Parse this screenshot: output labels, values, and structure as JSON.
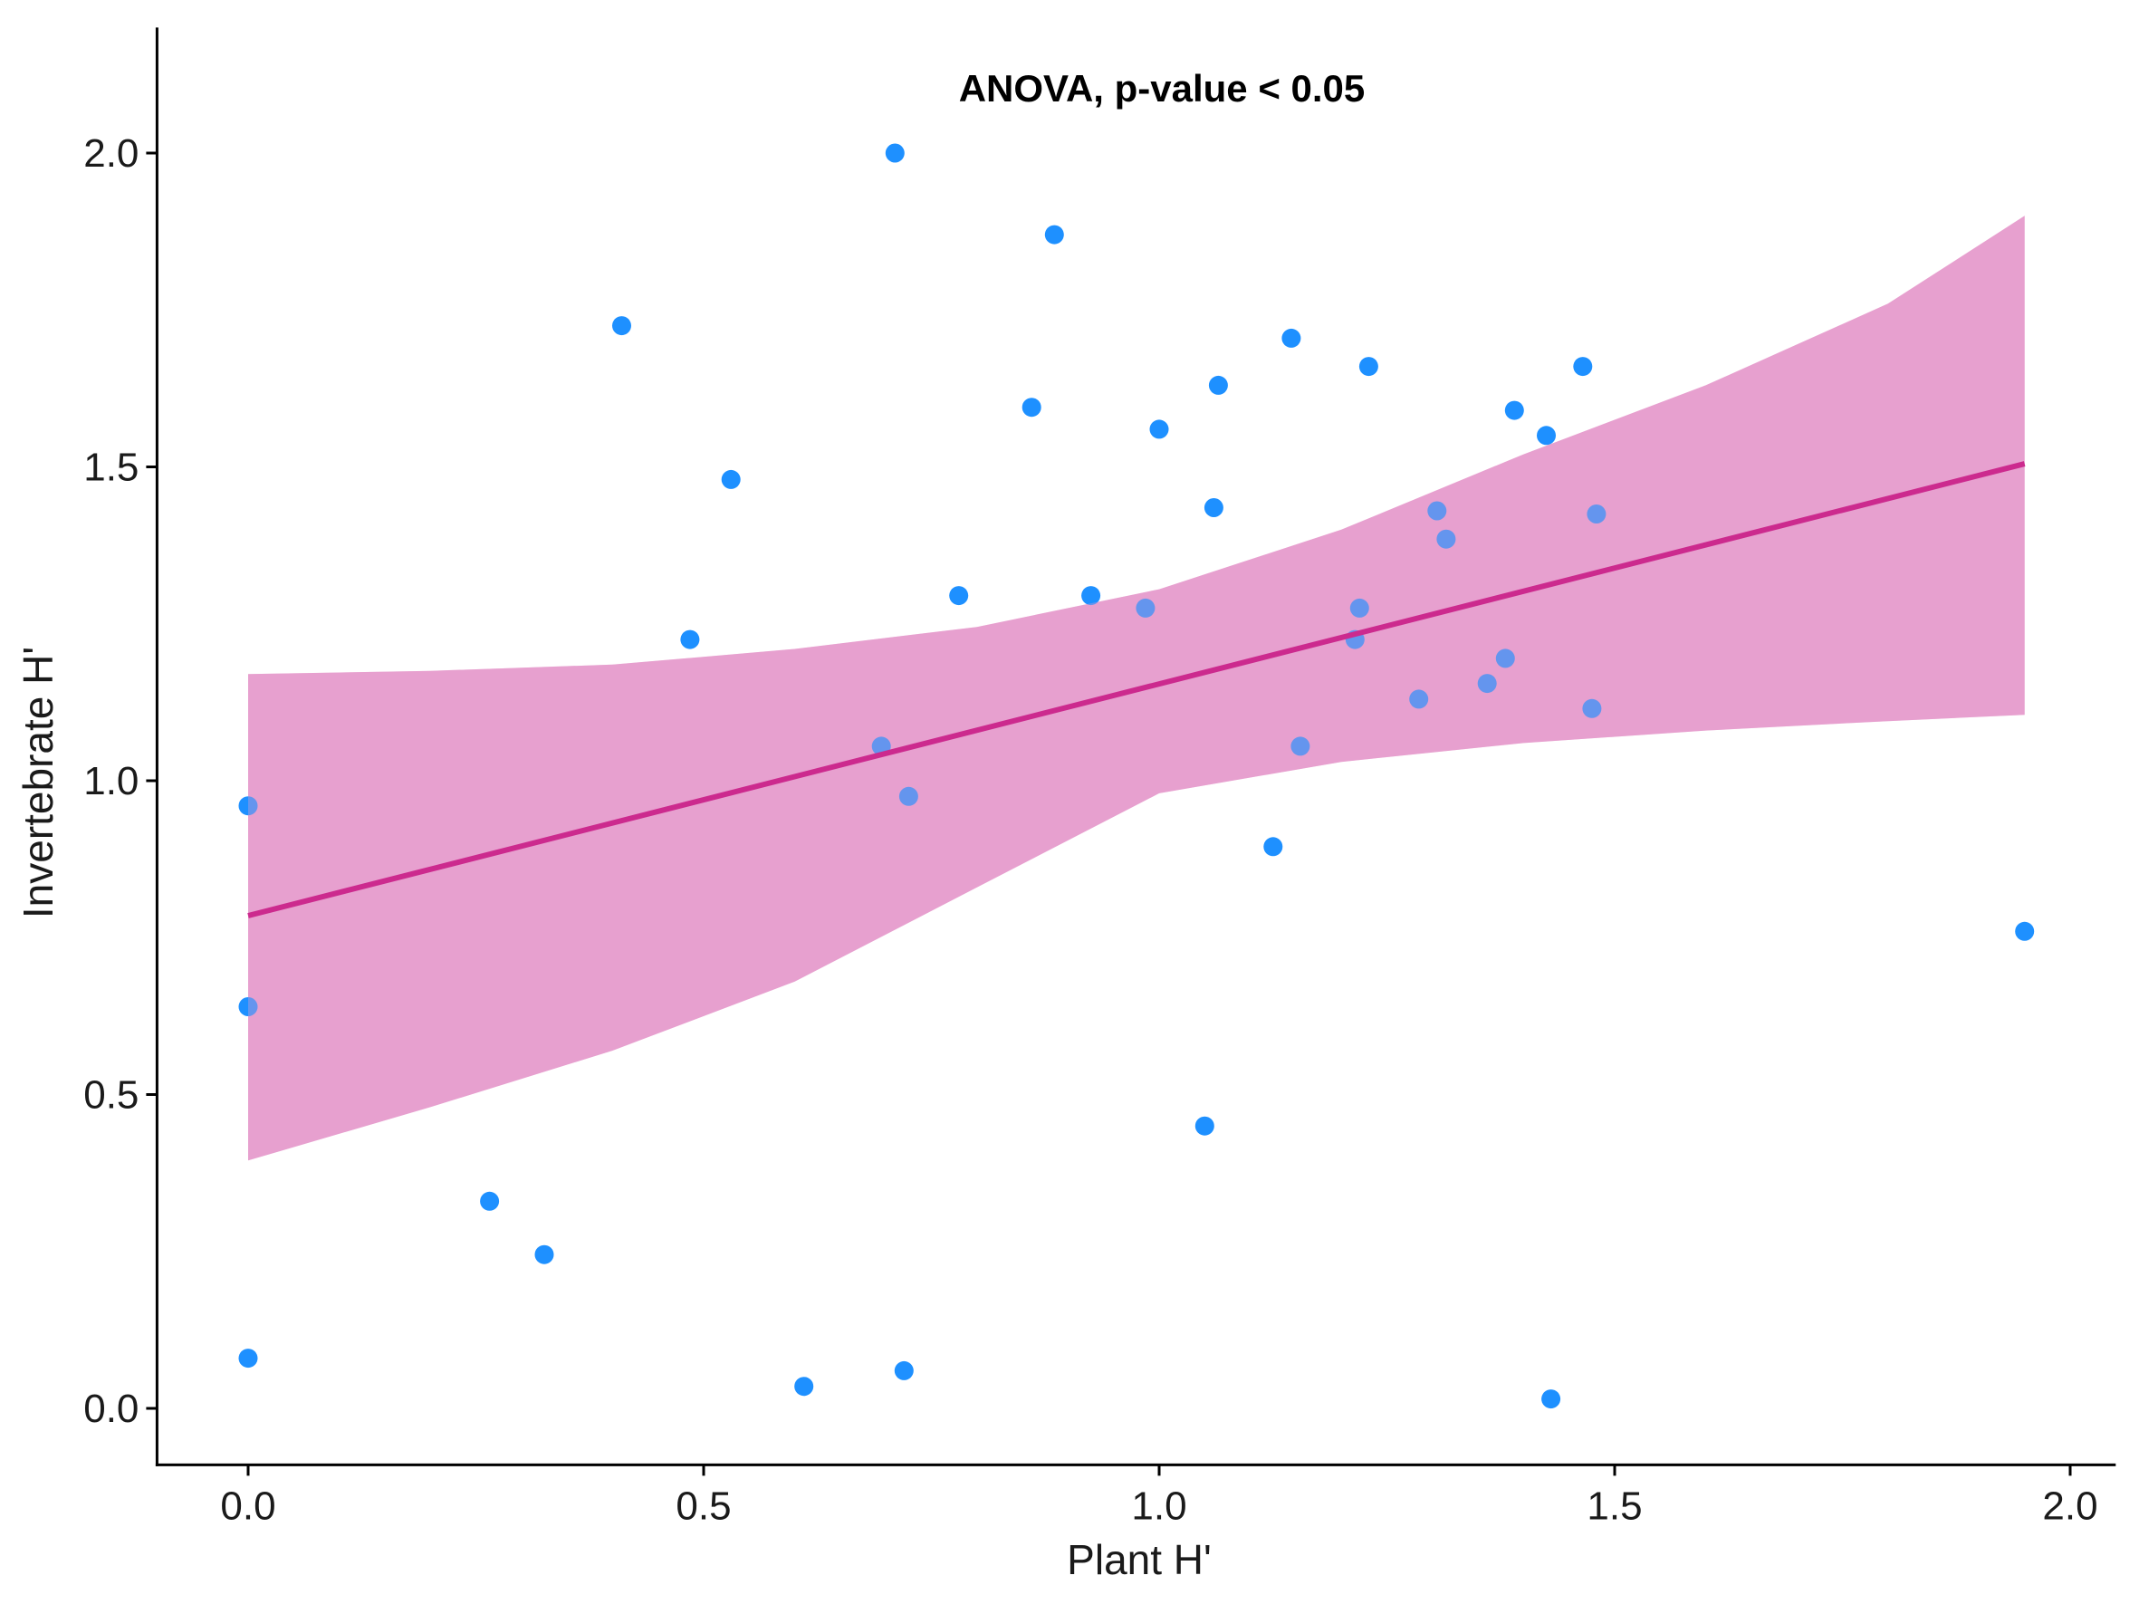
{
  "chart_data": {
    "type": "scatter",
    "title": "",
    "annotation": "ANOVA, p-value < 0.05",
    "xlabel": "Plant H'",
    "ylabel": "Invertebrate H'",
    "xlim": [
      -0.1,
      2.05
    ],
    "ylim": [
      -0.09,
      2.2
    ],
    "x_ticks": [
      0.0,
      0.5,
      1.0,
      1.5,
      2.0
    ],
    "x_tick_labels": [
      "0.0",
      "0.5",
      "1.0",
      "1.5",
      "2.0"
    ],
    "y_ticks": [
      0.0,
      0.5,
      1.0,
      1.5,
      2.0
    ],
    "y_tick_labels": [
      "0.0",
      "0.5",
      "1.0",
      "1.5",
      "2.0"
    ],
    "grid": false,
    "legend": "none",
    "colors": {
      "points": "#1E90FF",
      "fit_line": "#CC2A8E",
      "confidence_band": "#E7A0CF"
    },
    "points": [
      {
        "x": 0.0,
        "y": 0.96
      },
      {
        "x": 0.0,
        "y": 0.64
      },
      {
        "x": 0.0,
        "y": 0.08
      },
      {
        "x": 0.265,
        "y": 0.33
      },
      {
        "x": 0.325,
        "y": 0.245
      },
      {
        "x": 0.41,
        "y": 1.725
      },
      {
        "x": 0.485,
        "y": 1.225
      },
      {
        "x": 0.53,
        "y": 1.48
      },
      {
        "x": 0.61,
        "y": 0.035
      },
      {
        "x": 0.695,
        "y": 1.055
      },
      {
        "x": 0.71,
        "y": 2.0
      },
      {
        "x": 0.72,
        "y": 0.06
      },
      {
        "x": 0.725,
        "y": 0.975
      },
      {
        "x": 0.78,
        "y": 1.295
      },
      {
        "x": 0.86,
        "y": 1.595
      },
      {
        "x": 0.885,
        "y": 1.87
      },
      {
        "x": 0.925,
        "y": 1.295
      },
      {
        "x": 0.985,
        "y": 1.275
      },
      {
        "x": 1.0,
        "y": 1.56
      },
      {
        "x": 1.05,
        "y": 0.45
      },
      {
        "x": 1.06,
        "y": 1.435
      },
      {
        "x": 1.065,
        "y": 1.63
      },
      {
        "x": 1.125,
        "y": 0.895
      },
      {
        "x": 1.145,
        "y": 1.705
      },
      {
        "x": 1.155,
        "y": 1.055
      },
      {
        "x": 1.215,
        "y": 1.225
      },
      {
        "x": 1.22,
        "y": 1.275
      },
      {
        "x": 1.23,
        "y": 1.66
      },
      {
        "x": 1.285,
        "y": 1.13
      },
      {
        "x": 1.305,
        "y": 1.43
      },
      {
        "x": 1.315,
        "y": 1.385
      },
      {
        "x": 1.36,
        "y": 1.155
      },
      {
        "x": 1.38,
        "y": 1.195
      },
      {
        "x": 1.39,
        "y": 1.59
      },
      {
        "x": 1.425,
        "y": 1.55
      },
      {
        "x": 1.43,
        "y": 0.015
      },
      {
        "x": 1.465,
        "y": 1.66
      },
      {
        "x": 1.475,
        "y": 1.115
      },
      {
        "x": 1.48,
        "y": 1.425
      },
      {
        "x": 1.95,
        "y": 0.76
      }
    ],
    "fit_line": [
      {
        "x": 0.0,
        "y": 0.785
      },
      {
        "x": 1.95,
        "y": 1.505
      }
    ],
    "confidence_band": [
      {
        "x": 0.0,
        "lower": 0.395,
        "upper": 1.17
      },
      {
        "x": 0.2,
        "lower": 0.48,
        "upper": 1.175
      },
      {
        "x": 0.4,
        "lower": 0.57,
        "upper": 1.185
      },
      {
        "x": 0.6,
        "lower": 0.68,
        "upper": 1.21
      },
      {
        "x": 0.8,
        "lower": 0.83,
        "upper": 1.245
      },
      {
        "x": 1.0,
        "lower": 0.98,
        "upper": 1.305
      },
      {
        "x": 1.2,
        "lower": 1.03,
        "upper": 1.4
      },
      {
        "x": 1.4,
        "lower": 1.06,
        "upper": 1.52
      },
      {
        "x": 1.6,
        "lower": 1.08,
        "upper": 1.63
      },
      {
        "x": 1.8,
        "lower": 1.095,
        "upper": 1.76
      },
      {
        "x": 1.95,
        "lower": 1.105,
        "upper": 1.9
      }
    ]
  }
}
